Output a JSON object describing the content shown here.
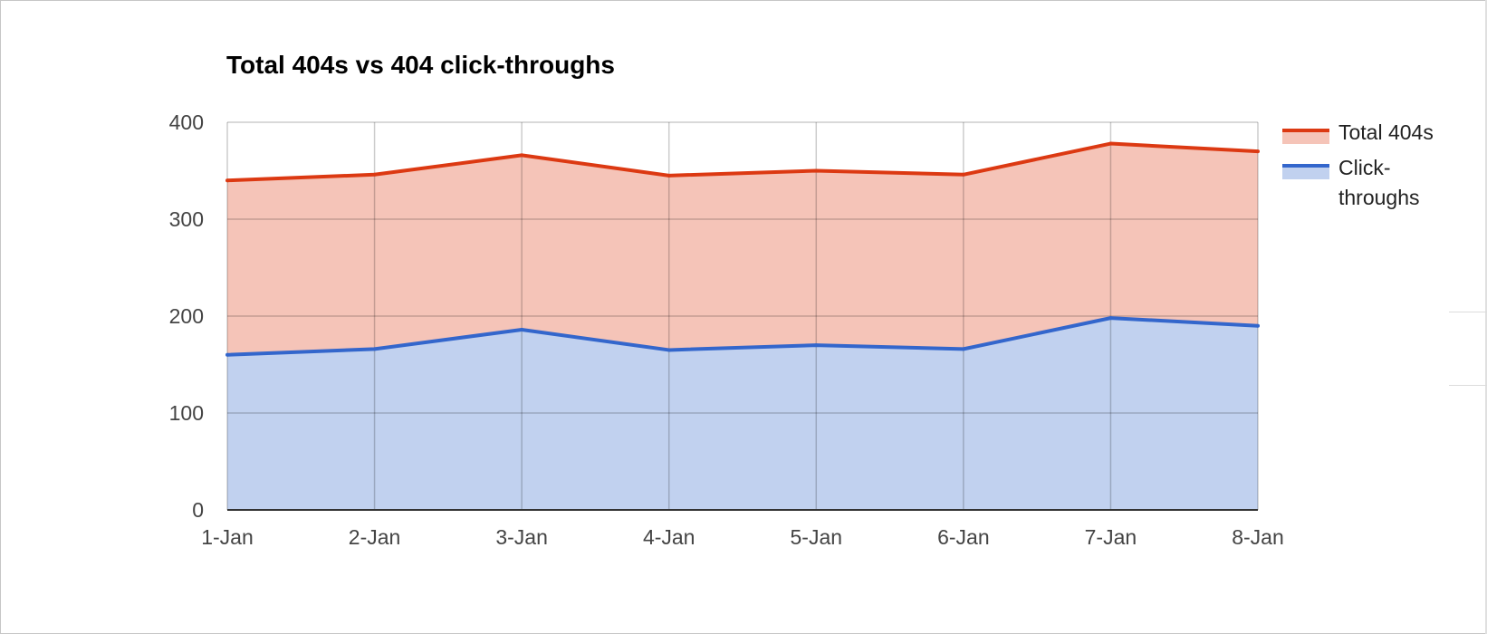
{
  "chart_data": {
    "type": "area",
    "title": "Total 404s vs 404 click-throughs",
    "xlabel": "",
    "ylabel": "",
    "categories": [
      "1-Jan",
      "2-Jan",
      "3-Jan",
      "4-Jan",
      "5-Jan",
      "6-Jan",
      "7-Jan",
      "8-Jan"
    ],
    "ylim": [
      0,
      400
    ],
    "yticks": [
      0,
      100,
      200,
      300,
      400
    ],
    "grid": true,
    "legend_position": "right",
    "series": [
      {
        "name": "Total 404s",
        "values": [
          340,
          346,
          366,
          345,
          350,
          346,
          378,
          370
        ],
        "line_color": "#dc3912",
        "fill_color": "#f5c4b8"
      },
      {
        "name": "Click-throughs",
        "values": [
          160,
          166,
          186,
          165,
          170,
          166,
          198,
          190
        ],
        "line_color": "#3366cc",
        "fill_color": "#c1d1ef"
      }
    ]
  }
}
